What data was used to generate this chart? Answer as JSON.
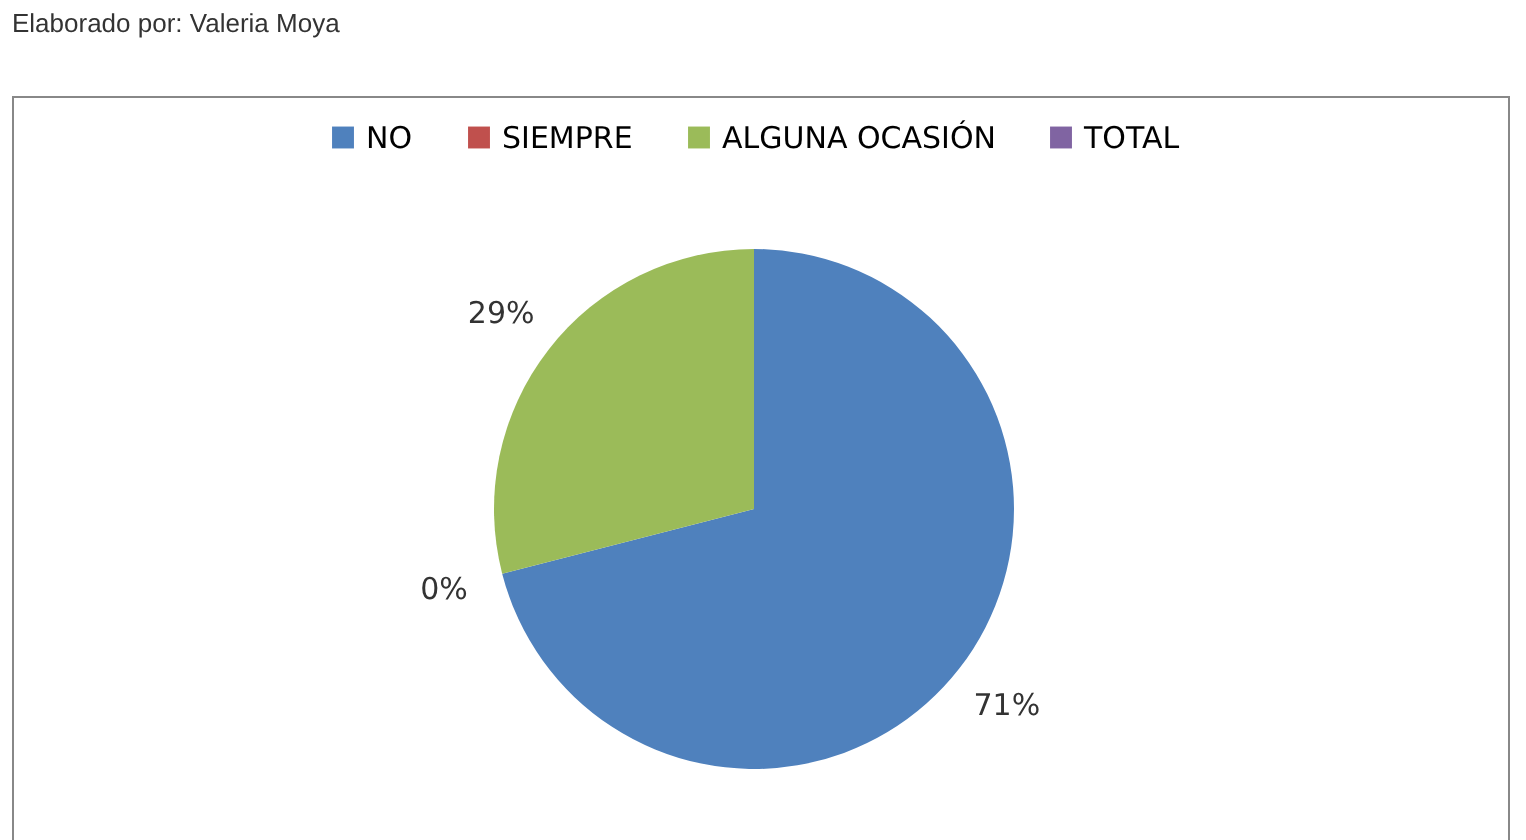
{
  "chart_data": {
    "type": "pie",
    "annotations": [
      "Elaborado por: Valeria Moya"
    ],
    "categories": [
      "NO",
      "SIEMPRE",
      "ALGUNA OCASIÓN",
      "TOTAL"
    ],
    "values": [
      71,
      0,
      29,
      null
    ],
    "colors": [
      "#4f81bd",
      "#c0504d",
      "#9bbb59",
      "#8064a2"
    ],
    "value_labels": [
      "71%",
      "0%",
      "29%",
      null
    ],
    "legend": "top"
  }
}
